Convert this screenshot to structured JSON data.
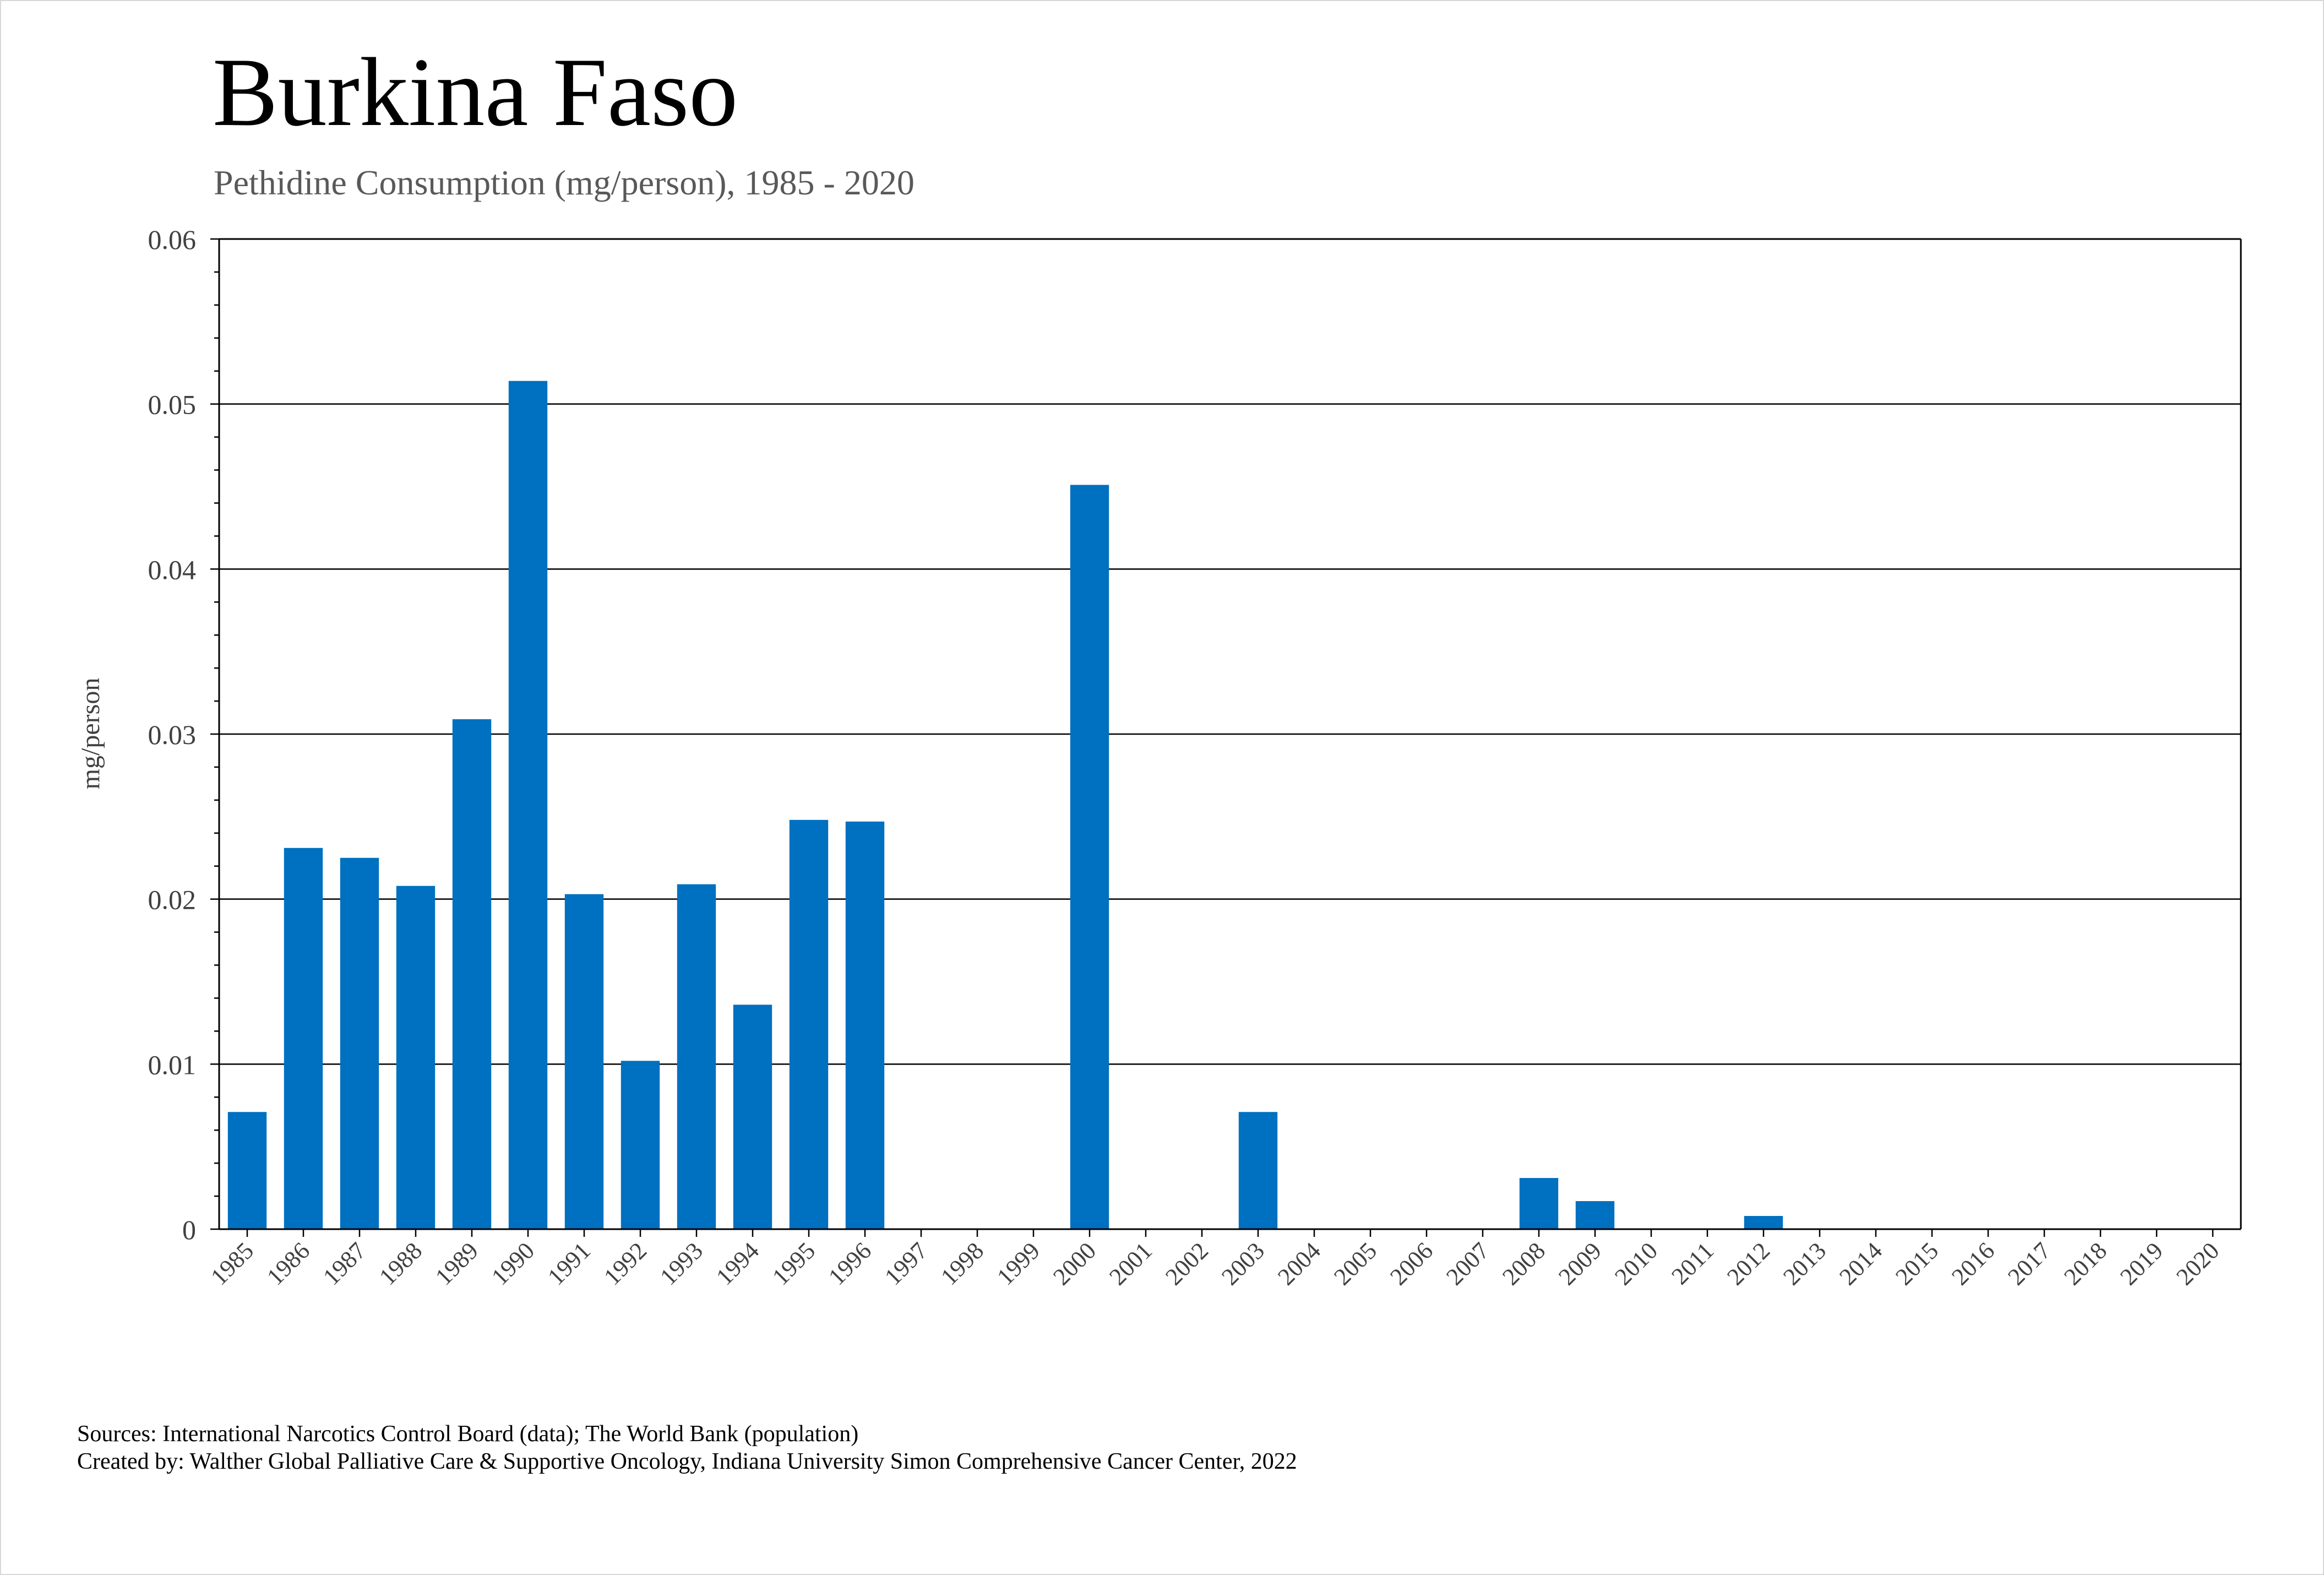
{
  "chart_data": {
    "type": "bar",
    "title": "Burkina Faso",
    "subtitle": "Pethidine Consumption (mg/person), 1985 - 2020",
    "xlabel": "",
    "ylabel": "mg/person",
    "ylim": [
      0,
      0.06
    ],
    "yticks": [
      "0",
      "0.01",
      "0.02",
      "0.03",
      "0.04",
      "0.05",
      "0.06"
    ],
    "grid": true,
    "bar_color": "#0070C0",
    "categories": [
      "1985",
      "1986",
      "1987",
      "1988",
      "1989",
      "1990",
      "1991",
      "1992",
      "1993",
      "1994",
      "1995",
      "1996",
      "1997",
      "1998",
      "1999",
      "2000",
      "2001",
      "2002",
      "2003",
      "2004",
      "2005",
      "2006",
      "2007",
      "2008",
      "2009",
      "2010",
      "2011",
      "2012",
      "2013",
      "2014",
      "2015",
      "2016",
      "2017",
      "2018",
      "2019",
      "2020"
    ],
    "values": [
      0.0071,
      0.0231,
      0.0225,
      0.0208,
      0.0309,
      0.0514,
      0.0203,
      0.0102,
      0.0209,
      0.0136,
      0.0248,
      0.0247,
      0,
      0,
      0,
      0.0451,
      0,
      0,
      0.0071,
      0,
      0,
      0,
      0,
      0.0031,
      0.0017,
      0,
      0,
      0.0008,
      0,
      0,
      0,
      0,
      0,
      0,
      0,
      0
    ]
  },
  "footer": {
    "sources": "Sources: International Narcotics Control Board (data); The World Bank (population)",
    "created": "Created by: Walther Global Palliative Care & Supportive Oncology, Indiana University Simon Comprehensive Cancer Center, 2022"
  }
}
